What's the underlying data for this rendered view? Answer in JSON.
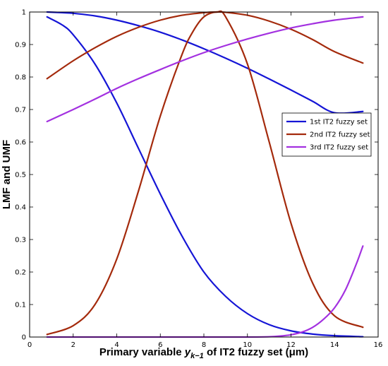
{
  "chart_data": {
    "type": "line",
    "xlabel": {
      "prefix": "Primary variable ",
      "var": "y",
      "sub": "k−1",
      "suffix": " of IT2 fuzzy set (μm)"
    },
    "ylabel": "LMF and UMF",
    "xlim": [
      0,
      16
    ],
    "ylim": [
      0,
      1
    ],
    "xticks": [
      0,
      2,
      4,
      6,
      8,
      10,
      12,
      14,
      16
    ],
    "yticks": [
      0,
      0.1,
      0.2,
      0.3,
      0.4,
      0.5,
      0.6,
      0.7,
      0.8,
      0.9,
      1
    ],
    "grid": false,
    "legend_position": "right",
    "series": [
      {
        "name": "1st IT2 fuzzy set",
        "color": "#1515d6",
        "curves": [
          {
            "x": [
              0.8,
              1.5,
              2,
              3,
              4,
              5,
              6,
              7,
              8,
              9,
              10,
              11,
              12,
              13,
              14,
              15.3
            ],
            "y": [
              1.0,
              0.998,
              0.996,
              0.988,
              0.975,
              0.958,
              0.938,
              0.914,
              0.887,
              0.858,
              0.827,
              0.794,
              0.76,
              0.725,
              0.69,
              0.694
            ]
          },
          {
            "x": [
              0.8,
              1.5,
              2,
              3,
              4,
              5,
              6,
              7,
              8,
              9,
              10,
              11,
              12,
              13,
              14,
              15.3
            ],
            "y": [
              0.985,
              0.96,
              0.93,
              0.84,
              0.72,
              0.58,
              0.44,
              0.31,
              0.2,
              0.125,
              0.072,
              0.038,
              0.019,
              0.009,
              0.004,
              0.001
            ]
          }
        ]
      },
      {
        "name": "2nd IT2 fuzzy set",
        "color": "#a42a0c",
        "curves": [
          {
            "x": [
              0.8,
              2,
              3,
              4,
              5,
              6,
              7,
              8,
              8.6,
              9,
              10,
              11,
              12,
              13,
              14,
              15.3
            ],
            "y": [
              0.795,
              0.85,
              0.89,
              0.925,
              0.953,
              0.975,
              0.99,
              0.998,
              1.0,
              0.999,
              0.99,
              0.972,
              0.947,
              0.915,
              0.878,
              0.843
            ]
          },
          {
            "x": [
              0.8,
              2,
              3,
              4,
              5,
              6,
              7,
              7.5,
              8,
              8.6,
              9,
              10,
              11,
              12,
              13,
              14,
              15.3
            ],
            "y": [
              0.008,
              0.035,
              0.1,
              0.24,
              0.45,
              0.68,
              0.87,
              0.94,
              0.985,
              1.0,
              0.985,
              0.84,
              0.6,
              0.35,
              0.165,
              0.065,
              0.03
            ]
          }
        ]
      },
      {
        "name": "3rd IT2 fuzzy set",
        "color": "#a331e0",
        "curves": [
          {
            "x": [
              0.8,
              2,
              3,
              4,
              5,
              6,
              7,
              8,
              9,
              10,
              11,
              12,
              13,
              14,
              15.3
            ],
            "y": [
              0.663,
              0.7,
              0.732,
              0.765,
              0.795,
              0.823,
              0.85,
              0.875,
              0.897,
              0.917,
              0.935,
              0.951,
              0.964,
              0.975,
              0.985
            ]
          },
          {
            "x": [
              0.8,
              4,
              6,
              8,
              9,
              10,
              11,
              11.5,
              12,
              12.5,
              13,
              13.5,
              14,
              14.5,
              15,
              15.3
            ],
            "y": [
              0.0,
              0.0,
              0.0,
              0.0,
              0.0,
              0.0,
              0.001,
              0.003,
              0.007,
              0.015,
              0.03,
              0.055,
              0.09,
              0.145,
              0.225,
              0.28
            ]
          }
        ]
      }
    ]
  }
}
